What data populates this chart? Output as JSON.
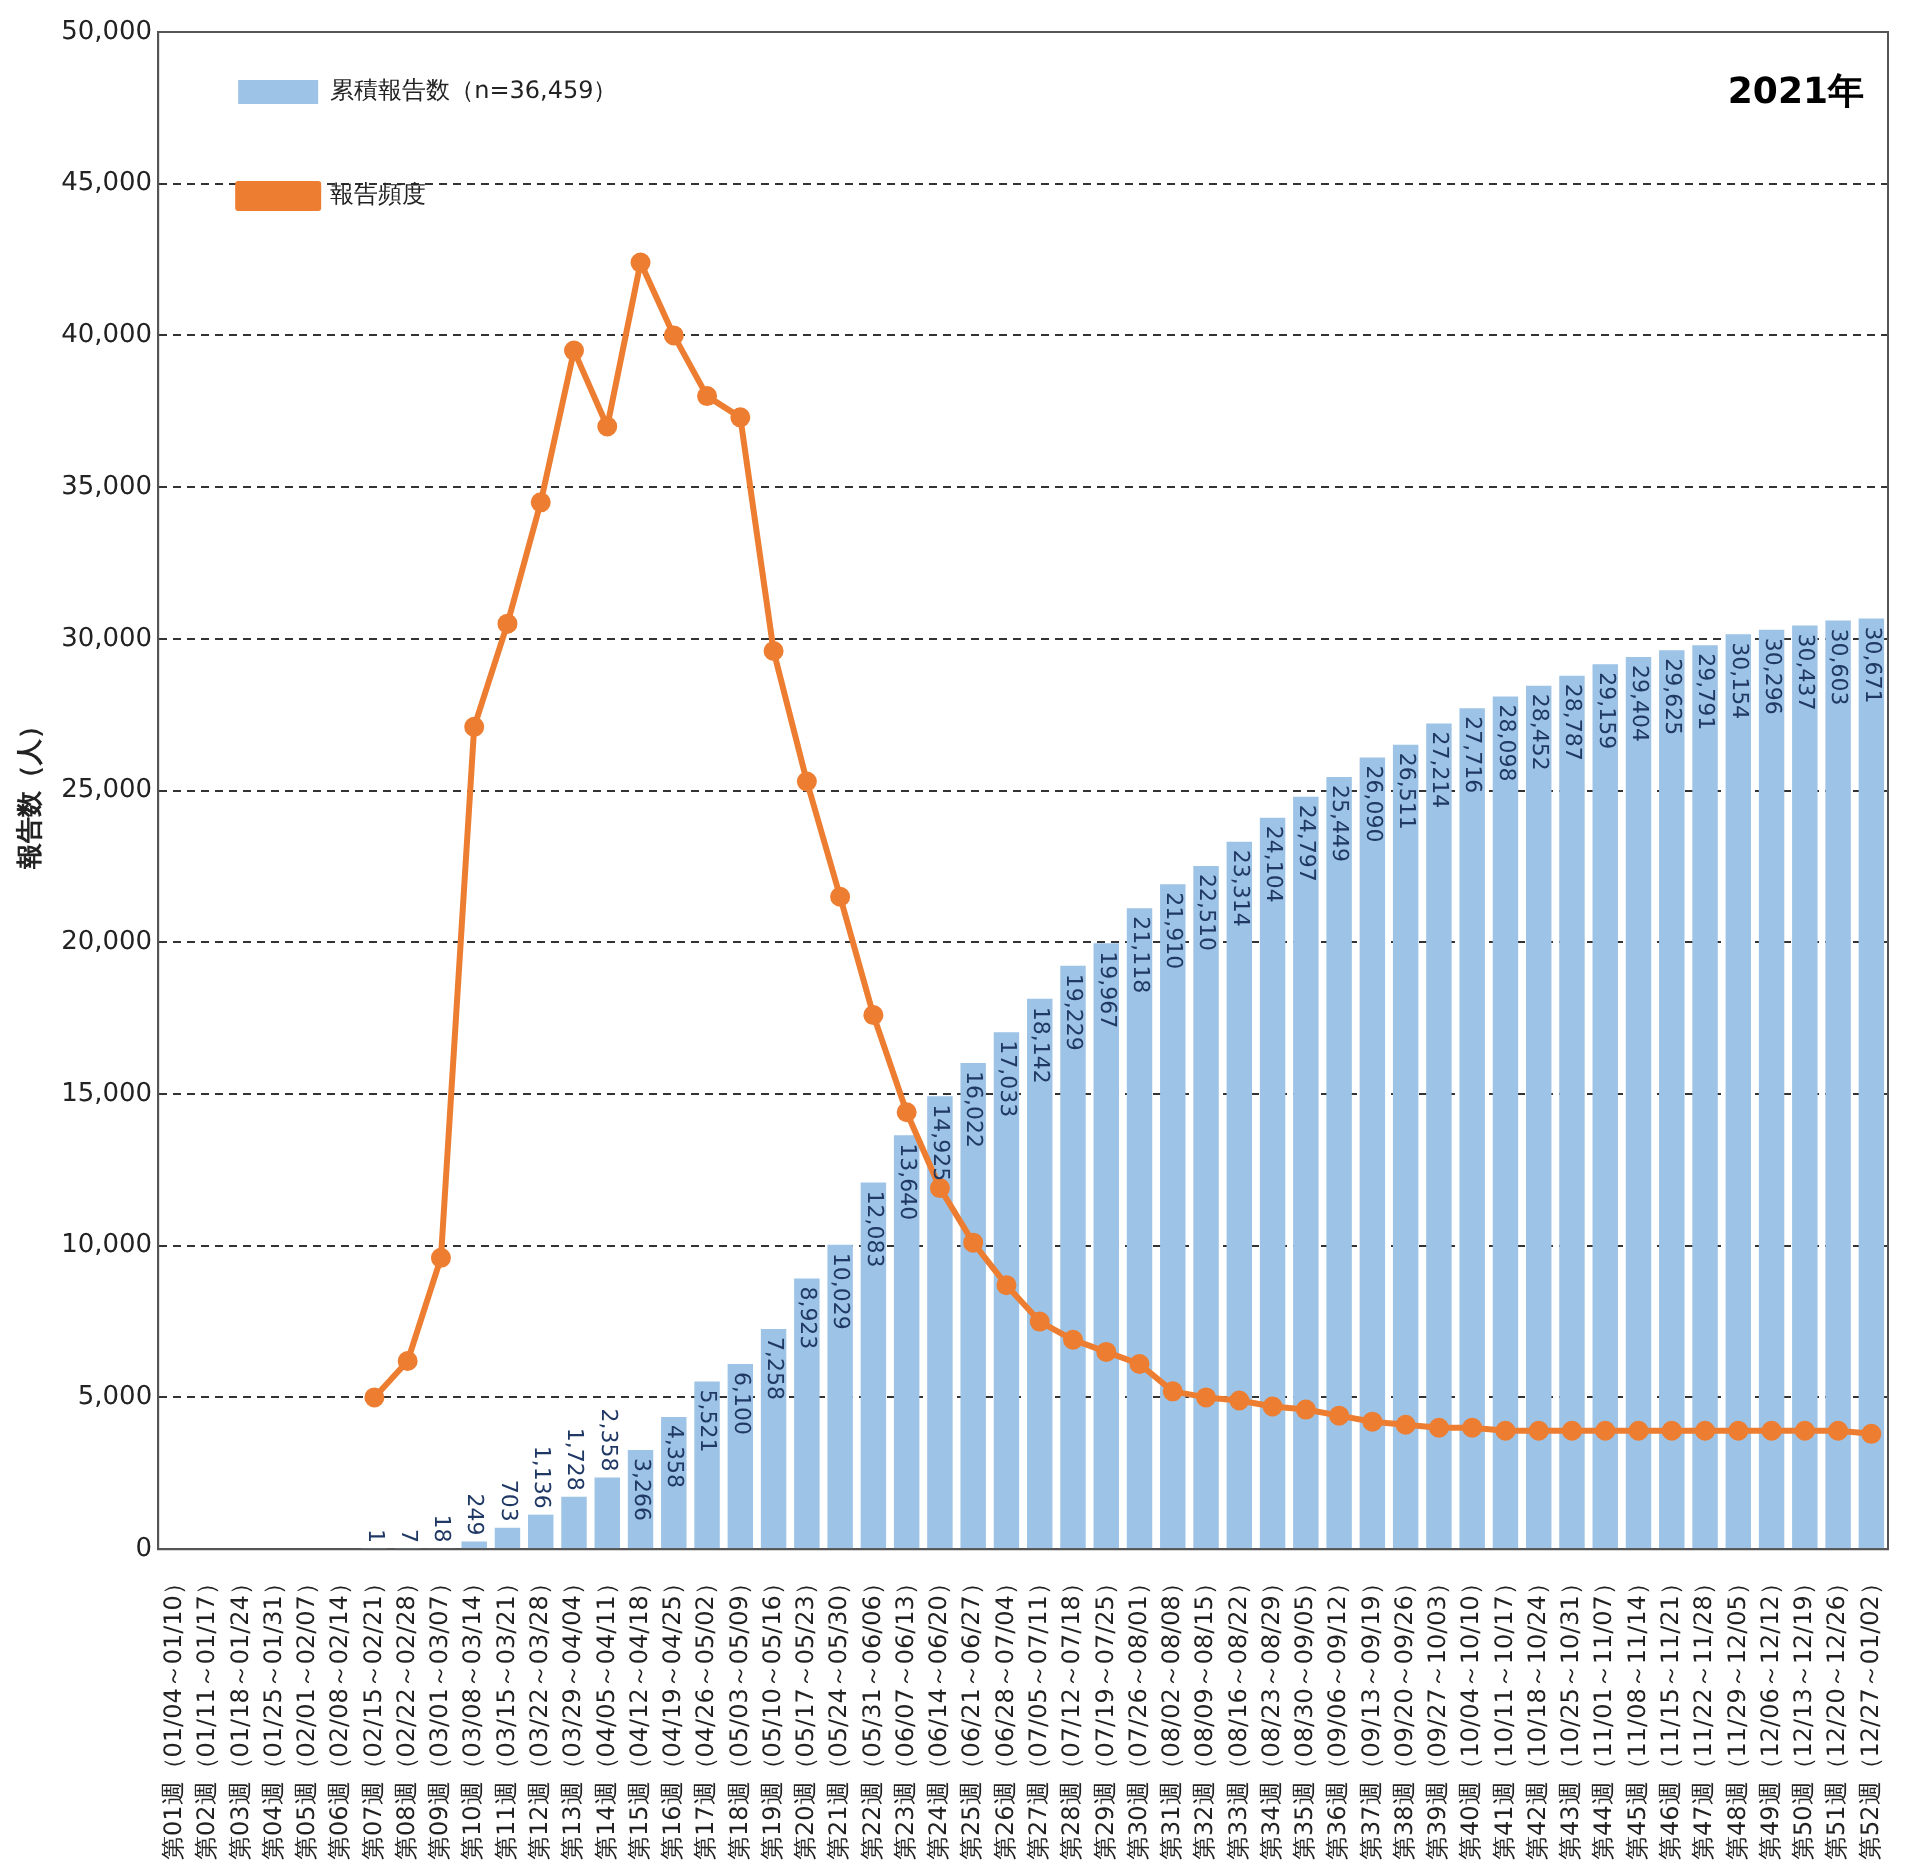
{
  "chart_data": {
    "type": "bar",
    "ylabel": "報告数（人）",
    "annotations": [
      "2021年"
    ],
    "categories": [
      "第01週（01/04～01/10）",
      "第02週（01/11～01/17）",
      "第03週（01/18～01/24）",
      "第04週（01/25～01/31）",
      "第05週（02/01～02/07）",
      "第06週（02/08～02/14）",
      "第07週（02/15～02/21）",
      "第08週（02/22～02/28）",
      "第09週（03/01～03/07）",
      "第10週（03/08～03/14）",
      "第11週（03/15～03/21）",
      "第12週（03/22～03/28）",
      "第13週（03/29～04/04）",
      "第14週（04/05～04/11）",
      "第15週（04/12～04/18）",
      "第16週（04/19～04/25）",
      "第17週（04/26～05/02）",
      "第18週（05/03～05/09）",
      "第19週（05/10～05/16）",
      "第20週（05/17～05/23）",
      "第21週（05/24～05/30）",
      "第22週（05/31～06/06）",
      "第23週（06/07～06/13）",
      "第24週（06/14～06/20）",
      "第25週（06/21～06/27）",
      "第26週（06/28～07/04）",
      "第27週（07/05～07/11）",
      "第28週（07/12～07/18）",
      "第29週（07/19～07/25）",
      "第30週（07/26～08/01）",
      "第31週（08/02～08/08）",
      "第32週（08/09～08/15）",
      "第33週（08/16～08/22）",
      "第34週（08/23～08/29）",
      "第35週（08/30～09/05）",
      "第36週（09/06～09/12）",
      "第37週（09/13～09/19）",
      "第38週（09/20～09/26）",
      "第39週（09/27～10/03）",
      "第40週（10/04～10/10）",
      "第41週（10/11～10/17）",
      "第42週（10/18～10/24）",
      "第43週（10/25～10/31）",
      "第44週（11/01～11/07）",
      "第45週（11/08～11/14）",
      "第46週（11/15～11/21）",
      "第47週（11/22～11/28）",
      "第48週（11/29～12/05）",
      "第49週（12/06～12/12）",
      "第50週（12/13～12/19）",
      "第51週（12/20～12/26）",
      "第52週（12/27～01/02）"
    ],
    "series": [
      {
        "name": "累積報告数（n=36,459）",
        "color": "#9dc3e6",
        "values": [
          0,
          0,
          0,
          0,
          0,
          0,
          1,
          7,
          18,
          249,
          703,
          1136,
          1728,
          2358,
          3266,
          4358,
          5521,
          6100,
          7258,
          8923,
          10029,
          12083,
          13640,
          14925,
          16022,
          17033,
          18142,
          19229,
          19967,
          21118,
          21910,
          22510,
          23314,
          24104,
          24797,
          25449,
          26090,
          26511,
          27214,
          27716,
          28098,
          28452,
          28787,
          29159,
          29404,
          29625,
          29791,
          30154,
          30296,
          30437,
          30603,
          30671
        ],
        "value_labels": [
          null,
          null,
          null,
          null,
          null,
          null,
          "1",
          "7",
          "18",
          "249",
          "703",
          "1,136",
          "1,728",
          "2,358",
          "3,266",
          "4,358",
          "5,521",
          "6,100",
          "7,258",
          "8,923",
          "10,029",
          "12,083",
          "13,640",
          "14,925",
          "16,022",
          "17,033",
          "18,142",
          "19,229",
          "19,967",
          "21,118",
          "21,910",
          "22,510",
          "23,314",
          "24,104",
          "24,797",
          "25,449",
          "26,090",
          "26,511",
          "27,214",
          "27,716",
          "28,098",
          "28,452",
          "28,787",
          "29,159",
          "29,404",
          "29,625",
          "29,791",
          "30,154",
          "30,296",
          "30,437",
          "30,603",
          "30,671"
        ]
      },
      {
        "name": "報告頻度",
        "type": "line",
        "color": "#ed7d31",
        "values": [
          null,
          null,
          null,
          null,
          null,
          null,
          5000,
          6200,
          9600,
          27100,
          30500,
          34500,
          39500,
          37000,
          42400,
          40000,
          38000,
          37300,
          29600,
          25300,
          21500,
          17600,
          14400,
          11900,
          10100,
          8700,
          7500,
          6900,
          6500,
          6100,
          5200,
          5000,
          4900,
          4700,
          4600,
          4400,
          4200,
          4100,
          4000,
          4000,
          3900,
          3900,
          3900,
          3900,
          3900,
          3900,
          3900,
          3900,
          3900,
          3900,
          3900,
          3800
        ]
      }
    ],
    "ylim": [
      0,
      50000
    ],
    "yticks": [
      0,
      {
        "value": 5000,
        "label": "5,000"
      },
      {
        "value": 10000,
        "label": "10,000"
      },
      {
        "value": 15000,
        "label": "15,000"
      },
      {
        "value": 20000,
        "label": "20,000"
      },
      {
        "value": 25000,
        "label": "25,000"
      },
      {
        "value": 30000,
        "label": "30,000"
      },
      {
        "value": 35000,
        "label": "35,000"
      },
      {
        "value": 40000,
        "label": "40,000"
      },
      {
        "value": 45000,
        "label": "45,000"
      },
      {
        "value": 50000,
        "label": "50,000"
      }
    ],
    "grid": "y",
    "legend": "top left",
    "marker": "circle",
    "line_style": "solid"
  }
}
